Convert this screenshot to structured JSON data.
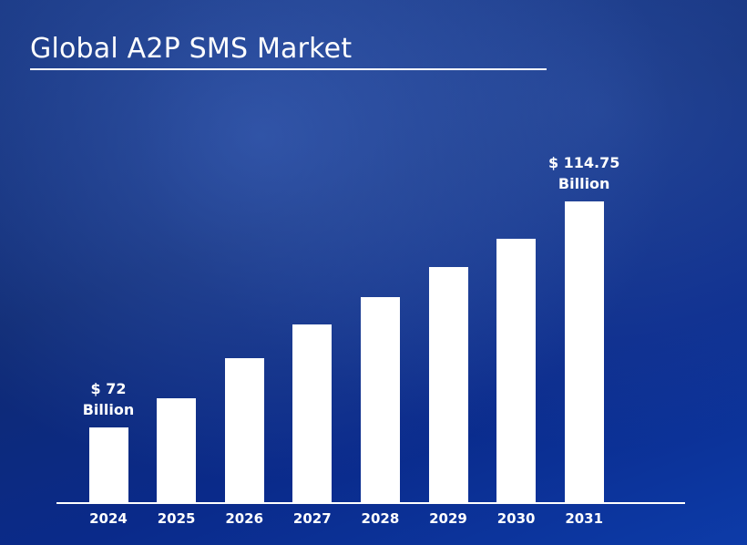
{
  "chart_data": {
    "type": "bar",
    "title": "Global A2P SMS Market",
    "categories": [
      "2024",
      "2025",
      "2026",
      "2027",
      "2028",
      "2029",
      "2030",
      "2031"
    ],
    "values": [
      72,
      77.5,
      85.1,
      91.5,
      96.7,
      102.4,
      107.7,
      114.75
    ],
    "value_labels": [
      "$ 72 Billion",
      null,
      null,
      null,
      null,
      null,
      null,
      "$ 114.75 Billion"
    ],
    "color": "#ffffff"
  }
}
